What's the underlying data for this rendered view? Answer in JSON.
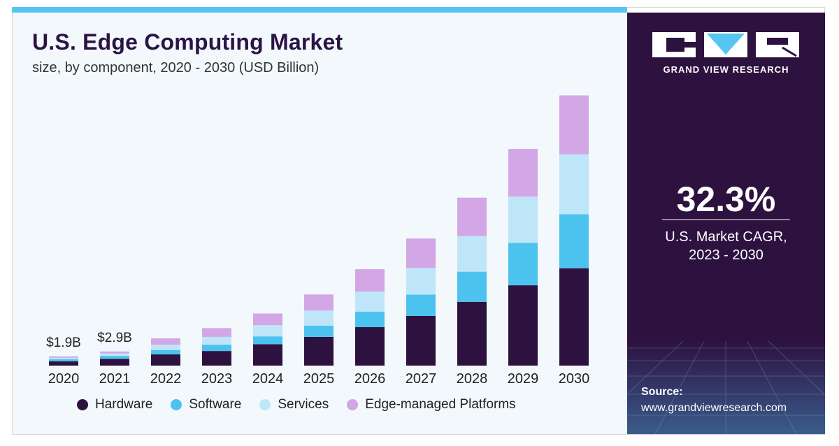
{
  "title": "U.S. Edge Computing Market",
  "subtitle": "size, by component, 2020 - 2030 (USD Billion)",
  "brand": {
    "name": "GRAND VIEW RESEARCH"
  },
  "cagr": {
    "value": "32.3%",
    "label_line1": "U.S. Market CAGR,",
    "label_line2": "2023 - 2030"
  },
  "source": {
    "label": "Source:",
    "url": "www.grandviewresearch.com"
  },
  "colors": {
    "hardware": "#2d1240",
    "software": "#4cc3ef",
    "services": "#bfe6f8",
    "platforms": "#d3a6e6",
    "side_panel": "#2d1240"
  },
  "chart_data": {
    "type": "bar",
    "stacked": true,
    "title": "U.S. Edge Computing Market",
    "subtitle": "size, by component, 2020 - 2030 (USD Billion)",
    "categories": [
      "2020",
      "2021",
      "2022",
      "2023",
      "2024",
      "2025",
      "2026",
      "2027",
      "2028",
      "2029",
      "2030"
    ],
    "series": [
      {
        "name": "Hardware",
        "values": [
          0.9,
          1.4,
          2.3,
          3.0,
          4.4,
          5.9,
          7.9,
          10.2,
          13.1,
          16.5,
          20.0
        ]
      },
      {
        "name": "Software",
        "values": [
          0.4,
          0.6,
          0.9,
          1.3,
          1.6,
          2.3,
          3.2,
          4.4,
          6.2,
          8.7,
          11.1
        ]
      },
      {
        "name": "Services",
        "values": [
          0.3,
          0.5,
          1.1,
          1.6,
          2.3,
          3.1,
          4.1,
          5.5,
          7.3,
          9.5,
          12.3
        ]
      },
      {
        "name": "Edge-managed Platforms",
        "values": [
          0.3,
          0.4,
          1.3,
          1.8,
          2.4,
          3.3,
          4.6,
          6.0,
          7.9,
          9.8,
          12.1
        ]
      }
    ],
    "data_labels": [
      {
        "category": "2020",
        "text": "$1.9B"
      },
      {
        "category": "2021",
        "text": "$2.9B"
      }
    ],
    "ylim": [
      0,
      56
    ],
    "grid": false,
    "legend": "bottom"
  }
}
